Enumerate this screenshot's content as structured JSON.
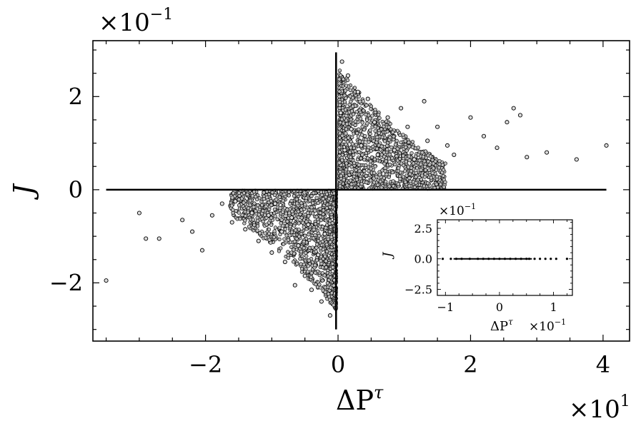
{
  "chart_data": [
    {
      "type": "scatter",
      "title": "",
      "xlabel": "ΔP",
      "xlabel_sup": "τ",
      "ylabel": "J",
      "x_multiplier": "×10",
      "x_multiplier_exp": "1",
      "y_multiplier": "×10",
      "y_multiplier_exp": "−1",
      "xlim": [
        -3.7,
        4.4
      ],
      "ylim": [
        -3.25,
        3.2
      ],
      "xticks": [
        -2,
        0,
        2,
        4
      ],
      "xtick_labels": [
        "−2",
        "0",
        "2",
        "4"
      ],
      "yticks": [
        -2,
        0,
        2
      ],
      "ytick_labels": [
        "−2",
        "0",
        "2"
      ],
      "grid": false,
      "legend": "none",
      "marker": "hollow-circle",
      "series": [
        {
          "horizontal_line": {
            "x": [
              -3.5,
              4.05
            ],
            "y": 0
          },
          "vertical_line": {
            "x": -0.03,
            "y": [
              -3.0,
              2.95
            ]
          },
          "points": [
            [
              -3.5,
              -1.95
            ],
            [
              -3.0,
              -0.5
            ],
            [
              -2.9,
              -1.05
            ],
            [
              -2.7,
              -1.05
            ],
            [
              -2.05,
              -1.3
            ],
            [
              -2.35,
              -0.65
            ],
            [
              -2.2,
              -0.9
            ],
            [
              -1.9,
              -0.55
            ],
            [
              -1.75,
              -0.3
            ],
            [
              -1.6,
              -0.7
            ],
            [
              -1.55,
              -0.25
            ],
            [
              -1.4,
              -0.85
            ],
            [
              -1.3,
              -0.5
            ],
            [
              -1.2,
              -1.1
            ],
            [
              -1.05,
              -0.55
            ],
            [
              -1.0,
              -1.35
            ],
            [
              -0.95,
              -0.3
            ],
            [
              -0.85,
              -0.9
            ],
            [
              -0.8,
              -1.55
            ],
            [
              -0.7,
              -0.6
            ],
            [
              -0.65,
              -2.05
            ],
            [
              -0.6,
              -1.2
            ],
            [
              -0.5,
              -1.85
            ],
            [
              -0.45,
              -0.75
            ],
            [
              -0.4,
              -2.15
            ],
            [
              -0.3,
              -1.4
            ],
            [
              -0.25,
              -2.4
            ],
            [
              -0.2,
              -0.95
            ],
            [
              -0.12,
              -2.7
            ],
            [
              -0.08,
              -1.75
            ],
            [
              4.05,
              0.95
            ],
            [
              3.6,
              0.65
            ],
            [
              3.15,
              0.8
            ],
            [
              2.85,
              0.7
            ],
            [
              2.75,
              1.6
            ],
            [
              2.65,
              1.75
            ],
            [
              2.55,
              1.45
            ],
            [
              2.4,
              0.9
            ],
            [
              2.2,
              1.15
            ],
            [
              2.0,
              1.55
            ],
            [
              1.75,
              0.75
            ],
            [
              1.65,
              0.95
            ],
            [
              1.5,
              1.35
            ],
            [
              1.35,
              1.05
            ],
            [
              1.3,
              1.9
            ],
            [
              1.15,
              0.65
            ],
            [
              1.05,
              1.35
            ],
            [
              0.95,
              1.75
            ],
            [
              0.85,
              0.85
            ],
            [
              0.75,
              1.55
            ],
            [
              0.6,
              0.75
            ],
            [
              0.55,
              1.45
            ],
            [
              0.45,
              1.95
            ],
            [
              0.35,
              0.95
            ],
            [
              0.3,
              2.1
            ],
            [
              0.2,
              1.3
            ],
            [
              0.15,
              2.45
            ],
            [
              0.1,
              0.85
            ],
            [
              0.06,
              2.75
            ],
            [
              0.04,
              1.65
            ]
          ]
        }
      ]
    },
    {
      "type": "scatter",
      "title": "",
      "xlabel": "ΔP",
      "xlabel_sup": "τ",
      "x_multiplier": "×10",
      "x_multiplier_exp": "−1",
      "ylabel": "J",
      "y_multiplier": "×10",
      "y_multiplier_exp": "−1",
      "xlim": [
        -1.15,
        1.35
      ],
      "ylim": [
        -3.0,
        3.2
      ],
      "xticks": [
        -1,
        0,
        1
      ],
      "xtick_labels": [
        "−1",
        "0",
        "1"
      ],
      "yticks": [
        -2.5,
        0.0,
        2.5
      ],
      "ytick_labels": [
        "−2.5",
        "0.0",
        "2.5"
      ],
      "grid": false,
      "legend": "none",
      "series": [
        {
          "points": [
            [
              -1.05,
              0
            ],
            [
              -0.9,
              0
            ],
            [
              -0.8,
              0
            ],
            [
              -0.7,
              0
            ],
            [
              -0.55,
              0
            ],
            [
              -0.4,
              0
            ],
            [
              -0.3,
              0
            ],
            [
              -0.2,
              0
            ],
            [
              -0.1,
              0
            ],
            [
              0.0,
              0
            ],
            [
              0.1,
              0
            ],
            [
              0.2,
              0
            ],
            [
              0.3,
              0
            ],
            [
              0.4,
              0
            ],
            [
              0.5,
              0
            ],
            [
              0.55,
              0
            ],
            [
              0.65,
              0
            ],
            [
              0.75,
              0
            ],
            [
              0.85,
              0
            ],
            [
              0.95,
              0
            ],
            [
              1.05,
              0
            ],
            [
              1.25,
              0
            ]
          ]
        }
      ]
    }
  ]
}
